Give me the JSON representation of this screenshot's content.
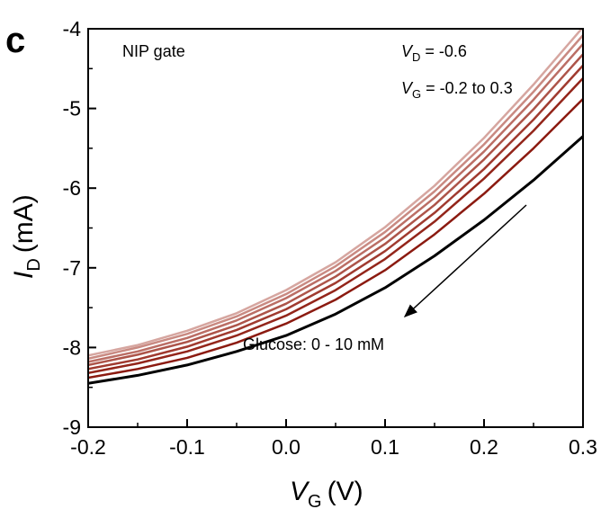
{
  "panel_label": "c",
  "chart_data": {
    "type": "line",
    "xlabel_main": "V",
    "xlabel_sub": "G",
    "xlabel_unit": "(V)",
    "ylabel_main": "I",
    "ylabel_sub": "D",
    "ylabel_unit": "(mA)",
    "xlim": [
      -0.2,
      0.3
    ],
    "ylim": [
      -4,
      -9
    ],
    "x_ticks": [
      "-0.2",
      "-0.1",
      "0.0",
      "0.1",
      "0.2",
      "0.3"
    ],
    "y_ticks": [
      "-9",
      "-8",
      "-7",
      "-6",
      "-5",
      "-4"
    ],
    "annotations": {
      "gate": "NIP gate",
      "vd_main": "V",
      "vd_sub": "D",
      "vd_value": " = -0.6",
      "vg_main": "V",
      "vg_sub": "G",
      "vg_value": " = -0.2 to 0.3",
      "glucose": "Glucose: 0 - 10 mM"
    },
    "x": [
      -0.2,
      -0.15,
      -0.1,
      -0.05,
      0.0,
      0.05,
      0.1,
      0.15,
      0.2,
      0.25,
      0.3
    ],
    "series": [
      {
        "color": "#000000",
        "values": [
          -8.45,
          -8.35,
          -8.22,
          -8.05,
          -7.85,
          -7.58,
          -7.25,
          -6.85,
          -6.4,
          -5.9,
          -5.35
        ]
      },
      {
        "color": "#8b1a10",
        "values": [
          -8.38,
          -8.27,
          -8.13,
          -7.94,
          -7.7,
          -7.4,
          -7.03,
          -6.58,
          -6.07,
          -5.5,
          -4.88
        ]
      },
      {
        "color": "#93251a",
        "values": [
          -8.32,
          -8.2,
          -8.05,
          -7.85,
          -7.6,
          -7.28,
          -6.89,
          -6.42,
          -5.88,
          -5.28,
          -4.62
        ]
      },
      {
        "color": "#a03a2f",
        "values": [
          -8.27,
          -8.15,
          -7.99,
          -7.78,
          -7.52,
          -7.19,
          -6.79,
          -6.31,
          -5.76,
          -5.14,
          -4.46
        ]
      },
      {
        "color": "#ad5449",
        "values": [
          -8.22,
          -8.09,
          -7.93,
          -7.72,
          -7.45,
          -7.11,
          -6.7,
          -6.21,
          -5.64,
          -5.01,
          -4.32
        ]
      },
      {
        "color": "#bb6e65",
        "values": [
          -8.18,
          -8.05,
          -7.88,
          -7.66,
          -7.38,
          -7.04,
          -6.62,
          -6.12,
          -5.54,
          -4.89,
          -4.19
        ]
      },
      {
        "color": "#c98a82",
        "values": [
          -8.14,
          -8.0,
          -7.83,
          -7.61,
          -7.33,
          -6.98,
          -6.55,
          -6.04,
          -5.45,
          -4.79,
          -4.08
        ]
      },
      {
        "color": "#d6a6a0",
        "values": [
          -8.1,
          -7.97,
          -7.79,
          -7.57,
          -7.28,
          -6.93,
          -6.49,
          -5.97,
          -5.37,
          -4.7,
          -3.98
        ]
      }
    ]
  }
}
